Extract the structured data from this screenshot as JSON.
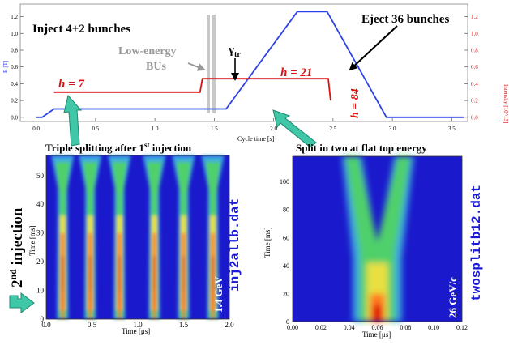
{
  "colors": {
    "b_field": "#2d43e8",
    "harmonic": "#e01010",
    "arrow_teal": "#3fc7a8",
    "arrow_teal_dark": "#1f8a72",
    "hm_low": "#1a1acc",
    "hm_high": "#e00000",
    "label_blue": "#1a1ad8",
    "label_dark_blue": "#0a1aa0"
  },
  "top_plot": {
    "title_left": "Inject 4+2 bunches",
    "title_right": "Eject 36 bunches",
    "low_energy_label": [
      "Low-energy",
      "BUs"
    ],
    "gamma_label": "γ",
    "gamma_sub": "tr",
    "h_labels": [
      {
        "text": "h = 7"
      },
      {
        "text": "h = 21"
      },
      {
        "text": "h = 84"
      }
    ],
    "xlabel": "Cycle time [s]",
    "ylabel_left": "B [T]",
    "ylabel_right": "Intensity [10^13]",
    "xticks": [
      "0.0",
      "0.5",
      "1.0",
      "1.5",
      "2.0",
      "2.5",
      "3.0",
      "3.5"
    ],
    "yticks_left": [
      "0.0",
      "0.2",
      "0.4",
      "0.6",
      "0.8",
      "1.0",
      "1.2"
    ],
    "yticks_right": [
      "0.0",
      "0.2",
      "0.4",
      "0.6",
      "0.8",
      "1.0",
      "1.2"
    ]
  },
  "left_panel": {
    "title": "Triple splitting after 1",
    "title_sup": "st",
    "title_end": " injection",
    "file_label": "inj2allb.dat",
    "energy_label": "1.4 GeV",
    "side_label": "2",
    "side_sup": "nd",
    "side_end": " injection",
    "xlabel": "Time [μs]",
    "ylabel": "Time [ms]",
    "xticks": [
      "0.0",
      "0.5",
      "1.0",
      "1.5",
      "2.0"
    ],
    "yticks": [
      "0",
      "10",
      "20",
      "30",
      "40",
      "50"
    ]
  },
  "right_panel": {
    "title": "Split in two at flat top energy",
    "file_label": "twosplitb12.dat",
    "energy_label": "26 GeV/c",
    "xlabel": "Time [μs]",
    "ylabel": "Time [ms]",
    "xticks": [
      "0.00",
      "0.02",
      "0.04",
      "0.06",
      "0.08",
      "0.10",
      "0.12"
    ],
    "yticks": [
      "0",
      "20",
      "40",
      "60",
      "80",
      "100"
    ]
  },
  "chart_data": [
    {
      "type": "line",
      "series": [
        {
          "x": [
            0.0,
            0.05,
            0.15,
            1.35,
            1.6,
            2.2,
            2.45,
            2.95,
            3.6
          ],
          "values": [
            0.0,
            0.0,
            0.1,
            0.1,
            0.1,
            1.26,
            1.26,
            0.0,
            0.0
          ]
        },
        {
          "x": [
            0.15,
            0.2,
            1.38,
            1.4,
            2.46,
            2.48
          ],
          "values": [
            0.3,
            0.3,
            0.3,
            0.46,
            0.46,
            0.2
          ]
        }
      ],
      "xlim": [
        -0.1,
        3.6
      ],
      "ylim": [
        -0.05,
        1.35
      ]
    },
    {
      "type": "heatmap",
      "xlim": [
        0,
        2.0
      ],
      "ylim": [
        0,
        57
      ],
      "bunch_centers_us": [
        0.18,
        0.48,
        0.8,
        1.18,
        1.5,
        1.82
      ]
    },
    {
      "type": "heatmap",
      "xlim": [
        0,
        0.12
      ],
      "ylim": [
        0,
        118
      ],
      "center_bottom_us": 0.06,
      "split_top_us": [
        0.042,
        0.079
      ]
    }
  ]
}
